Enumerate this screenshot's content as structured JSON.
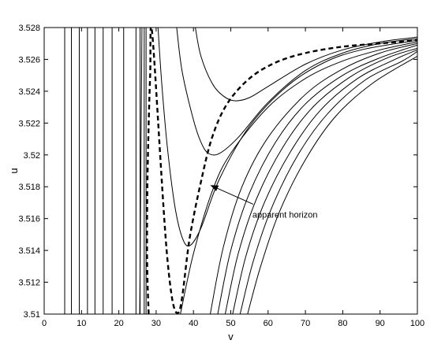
{
  "chart_data": {
    "type": "line",
    "title": "",
    "xlabel": "v",
    "ylabel": "u",
    "xlim": [
      0,
      100
    ],
    "ylim": [
      3.51,
      3.528
    ],
    "xticks": [
      0,
      10,
      20,
      30,
      40,
      50,
      60,
      70,
      80,
      90,
      100
    ],
    "xtick_labels": [
      "0",
      "10",
      "20",
      "30",
      "40",
      "50",
      "60",
      "70",
      "80",
      "90",
      "100"
    ],
    "yticks": [
      3.51,
      3.512,
      3.514,
      3.516,
      3.518,
      3.52,
      3.522,
      3.524,
      3.526,
      3.528
    ],
    "ytick_labels": [
      "3.51",
      "3.512",
      "3.514",
      "3.516",
      "3.518",
      "3.52",
      "3.522",
      "3.524",
      "3.526",
      "3.528"
    ],
    "grid": false,
    "vertical_lines_v": [
      5.5,
      7.3,
      9.4,
      11.6,
      13.6,
      15.8,
      18.2,
      21.3,
      24.6,
      25.7,
      26.8,
      27.3
    ],
    "series": [
      {
        "x": [
          40.5,
          42,
          45,
          48,
          51,
          55,
          60,
          70,
          80,
          90,
          100
        ],
        "y": [
          3.528,
          3.5262,
          3.5245,
          3.5237,
          3.5234,
          3.5236,
          3.5243,
          3.5257,
          3.5266,
          3.5271,
          3.5274
        ]
      },
      {
        "x": [
          35.5,
          37,
          40,
          42,
          44,
          47,
          52,
          60,
          70,
          80,
          90,
          100
        ],
        "y": [
          3.528,
          3.5252,
          3.5222,
          3.5208,
          3.5201,
          3.5201,
          3.5211,
          3.5233,
          3.5253,
          3.5264,
          3.527,
          3.5273
        ]
      },
      {
        "x": [
          30.5,
          31.5,
          33,
          35,
          37,
          39,
          42,
          47,
          55,
          65,
          75,
          85,
          100
        ],
        "y": [
          3.528,
          3.5245,
          3.5205,
          3.5168,
          3.5148,
          3.5143,
          3.5154,
          3.5185,
          3.5218,
          3.5243,
          3.5258,
          3.5266,
          3.5272
        ]
      },
      {
        "x": [
          36.5,
          40,
          45,
          50,
          60,
          70,
          80,
          90,
          100
        ],
        "y": [
          3.51,
          3.5138,
          3.5177,
          3.5201,
          3.523,
          3.5248,
          3.5259,
          3.5266,
          3.5271
        ]
      },
      {
        "x": [
          44.5,
          48,
          53,
          60,
          70,
          80,
          90,
          100
        ],
        "y": [
          3.51,
          3.5142,
          3.518,
          3.5211,
          3.5238,
          3.5254,
          3.5264,
          3.527
        ]
      },
      {
        "x": [
          46.5,
          50,
          55,
          62,
          70,
          80,
          90,
          100
        ],
        "y": [
          3.51,
          3.514,
          3.5176,
          3.5208,
          3.5232,
          3.525,
          3.5261,
          3.5269
        ]
      },
      {
        "x": [
          48.5,
          52,
          57,
          64,
          72,
          82,
          92,
          100
        ],
        "y": [
          3.51,
          3.5138,
          3.5173,
          3.5205,
          3.523,
          3.5249,
          3.5261,
          3.5267
        ]
      },
      {
        "x": [
          50.5,
          54,
          59,
          66,
          74,
          84,
          94,
          100
        ],
        "y": [
          3.51,
          3.5136,
          3.517,
          3.5202,
          3.5228,
          3.5248,
          3.526,
          3.5266
        ]
      },
      {
        "x": [
          52.5,
          56,
          61,
          68,
          76,
          86,
          96,
          100
        ],
        "y": [
          3.51,
          3.5133,
          3.5167,
          3.52,
          3.5226,
          3.5247,
          3.5259,
          3.5265
        ]
      },
      {
        "x": [
          54.5,
          58,
          63,
          70,
          78,
          88,
          100
        ],
        "y": [
          3.51,
          3.513,
          3.5164,
          3.5197,
          3.5224,
          3.5245,
          3.5262
        ]
      },
      {
        "x": [
          26.2,
          26.0,
          25.8,
          25.6
        ],
        "y": [
          3.528,
          3.522,
          3.516,
          3.51
        ]
      }
    ],
    "horizon_series": {
      "x": [
        28,
        27.6,
        27.6,
        27.9,
        28.4,
        29,
        33,
        36,
        39,
        42,
        45,
        49,
        55,
        62,
        70,
        80,
        90,
        100
      ],
      "y": [
        3.51,
        3.513,
        3.517,
        3.521,
        3.525,
        3.5275,
        3.5135,
        3.5101,
        3.5148,
        3.5183,
        3.5211,
        3.5232,
        3.5248,
        3.5258,
        3.5264,
        3.5268,
        3.527,
        3.5272
      ]
    },
    "annotation": {
      "text": "apparent horizon",
      "text_at": [
        55.8,
        3.5167
      ],
      "arrow_from": [
        56,
        3.5169
      ],
      "arrow_to": [
        44.5,
        3.5181
      ]
    }
  }
}
